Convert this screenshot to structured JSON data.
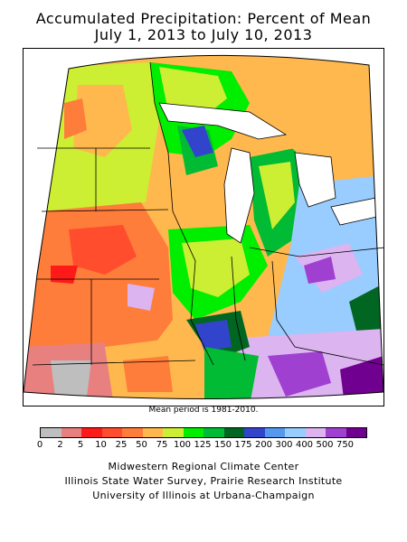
{
  "title": {
    "line1": "Accumulated Precipitation: Percent of Mean",
    "line2": "July 1, 2013 to July 10, 2013"
  },
  "map": {
    "region": "Midwestern United States",
    "note": "Mean period is 1981-2010."
  },
  "legend": {
    "labels": [
      "0",
      "2",
      "5",
      "10",
      "25",
      "50",
      "75",
      "100",
      "125",
      "150",
      "175",
      "200",
      "300",
      "400",
      "500",
      "750"
    ],
    "colors": [
      "#bebebe",
      "#e88080",
      "#ff1a1a",
      "#ff4d2e",
      "#ff7d3a",
      "#ffb84d",
      "#ccee33",
      "#00ee00",
      "#00bb33",
      "#006622",
      "#3344cc",
      "#5599ee",
      "#99ccff",
      "#dcb4f0",
      "#a040d0",
      "#700090"
    ]
  },
  "credits": {
    "line1": "Midwestern Regional Climate Center",
    "line2": "Illinois State Water Survey, Prairie Research Institute",
    "line3": "University of Illinois at Urbana-Champaign"
  }
}
